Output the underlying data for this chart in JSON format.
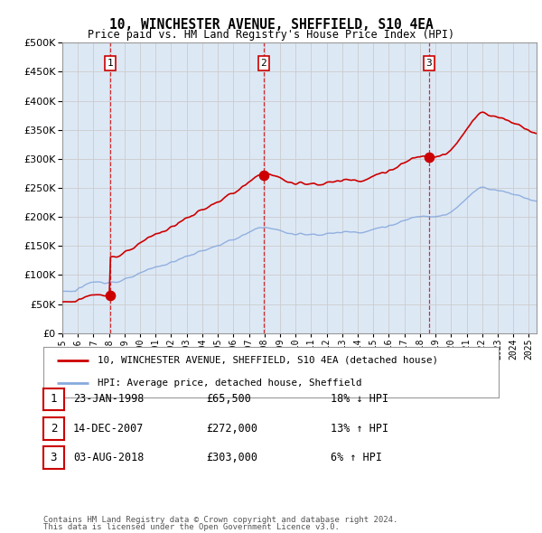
{
  "title": "10, WINCHESTER AVENUE, SHEFFIELD, S10 4EA",
  "subtitle": "Price paid vs. HM Land Registry's House Price Index (HPI)",
  "legend_line1": "10, WINCHESTER AVENUE, SHEFFIELD, S10 4EA (detached house)",
  "legend_line2": "HPI: Average price, detached house, Sheffield",
  "table": [
    {
      "num": "1",
      "date": "23-JAN-1998",
      "price": "£65,500",
      "change": "18% ↓ HPI"
    },
    {
      "num": "2",
      "date": "14-DEC-2007",
      "price": "£272,000",
      "change": "13% ↑ HPI"
    },
    {
      "num": "3",
      "date": "03-AUG-2018",
      "price": "£303,000",
      "change": "6% ↑ HPI"
    }
  ],
  "footnote1": "Contains HM Land Registry data © Crown copyright and database right 2024.",
  "footnote2": "This data is licensed under the Open Government Licence v3.0.",
  "sale_years": [
    1998.07,
    2007.95,
    2018.58
  ],
  "sale_prices": [
    65500,
    272000,
    303000
  ],
  "hpi_color": "#88aadd",
  "price_color": "#cc0000",
  "vline_color": "#cc0000",
  "grid_color": "#cccccc",
  "plot_bg_color": "#dde8f5",
  "background_color": "#ffffff",
  "ylim": [
    0,
    500000
  ],
  "xlim_min": 1995.0,
  "xlim_max": 2025.5,
  "yticks": [
    0,
    50000,
    100000,
    150000,
    200000,
    250000,
    300000,
    350000,
    400000,
    450000,
    500000
  ],
  "xticks": [
    1995,
    1996,
    1997,
    1998,
    1999,
    2000,
    2001,
    2002,
    2003,
    2004,
    2005,
    2006,
    2007,
    2008,
    2009,
    2010,
    2011,
    2012,
    2013,
    2014,
    2015,
    2016,
    2017,
    2018,
    2019,
    2020,
    2021,
    2022,
    2023,
    2024,
    2025
  ]
}
